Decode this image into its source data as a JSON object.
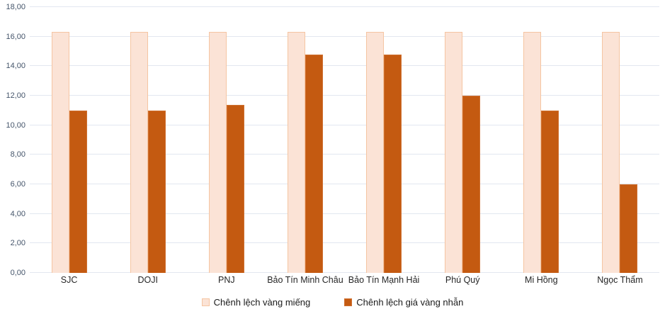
{
  "chart_data": {
    "type": "bar",
    "title": "",
    "xlabel": "",
    "ylabel": "",
    "categories": [
      "SJC",
      "DOJI",
      "PNJ",
      "Bảo Tín Minh Châu",
      "Bảo Tín Mạnh Hải",
      "Phú Quý",
      "Mi Hồng",
      "Ngọc Thẩm"
    ],
    "series": [
      {
        "name": "Chênh lệch vàng miếng",
        "color": "#fbe3d6",
        "border_color": "#f5c5a2",
        "values": [
          16.3,
          16.3,
          16.3,
          16.3,
          16.3,
          16.3,
          16.3,
          16.3
        ]
      },
      {
        "name": "Chênh lệch giá vàng nhẫn",
        "color": "#c45a11",
        "border_color": "#cf7030",
        "values": [
          11.0,
          11.0,
          11.4,
          14.8,
          14.8,
          12.0,
          11.0,
          6.0
        ]
      }
    ],
    "ylim": [
      0,
      18
    ],
    "y_ticks": [
      {
        "value": 0,
        "label": "0,00"
      },
      {
        "value": 2,
        "label": "2,00"
      },
      {
        "value": 4,
        "label": "4,00"
      },
      {
        "value": 6,
        "label": "6,00"
      },
      {
        "value": 8,
        "label": "8,00"
      },
      {
        "value": 10,
        "label": "10,00"
      },
      {
        "value": 12,
        "label": "12,00"
      },
      {
        "value": 14,
        "label": "14,00"
      },
      {
        "value": 16,
        "label": "16,00"
      },
      {
        "value": 18,
        "label": "18,00"
      }
    ],
    "grid": true,
    "legend_position": "bottom"
  },
  "colors": {
    "background": "#ffffff",
    "gridline": "#e2e7f0",
    "y_label": "#44546A",
    "x_label": "#262626",
    "legend_text": "#1a1a1a"
  }
}
